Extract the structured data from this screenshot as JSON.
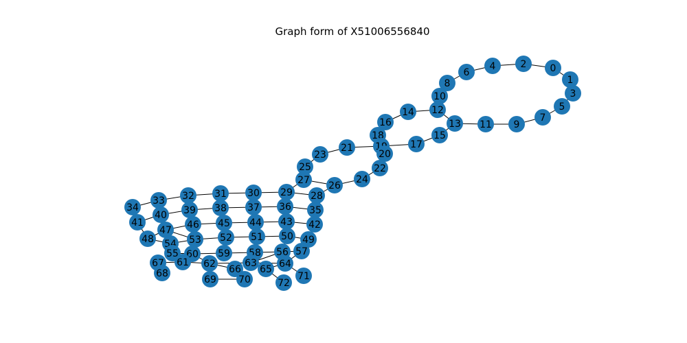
{
  "title": "Graph form of X51006556840",
  "colors": {
    "node": "#1f77b4",
    "edge": "#000000",
    "label": "#000000",
    "background": "#ffffff"
  },
  "nodes": [
    "0",
    "1",
    "2",
    "3",
    "4",
    "5",
    "6",
    "7",
    "8",
    "9",
    "10",
    "11",
    "12",
    "13",
    "14",
    "15",
    "16",
    "17",
    "18",
    "19",
    "20",
    "21",
    "22",
    "23",
    "24",
    "25",
    "26",
    "27",
    "28",
    "29",
    "30",
    "31",
    "32",
    "33",
    "34",
    "35",
    "36",
    "37",
    "38",
    "39",
    "40",
    "41",
    "42",
    "43",
    "44",
    "45",
    "46",
    "47",
    "48",
    "49",
    "50",
    "51",
    "52",
    "53",
    "54",
    "55",
    "56",
    "57",
    "58",
    "59",
    "60",
    "61",
    "62",
    "63",
    "64",
    "65",
    "66",
    "67",
    "68",
    "69",
    "70",
    "71",
    "72"
  ],
  "edges": [
    [
      "0",
      "1"
    ],
    [
      "1",
      "3"
    ],
    [
      "3",
      "5"
    ],
    [
      "5",
      "7"
    ],
    [
      "7",
      "9"
    ],
    [
      "9",
      "11"
    ],
    [
      "11",
      "13"
    ],
    [
      "13",
      "15"
    ],
    [
      "15",
      "17"
    ],
    [
      "17",
      "19"
    ],
    [
      "0",
      "2"
    ],
    [
      "2",
      "4"
    ],
    [
      "4",
      "6"
    ],
    [
      "6",
      "8"
    ],
    [
      "8",
      "10"
    ],
    [
      "10",
      "12"
    ],
    [
      "12",
      "14"
    ],
    [
      "14",
      "16"
    ],
    [
      "16",
      "18"
    ],
    [
      "18",
      "20"
    ],
    [
      "12",
      "13"
    ],
    [
      "19",
      "20"
    ],
    [
      "19",
      "21"
    ],
    [
      "21",
      "23"
    ],
    [
      "23",
      "25"
    ],
    [
      "25",
      "27"
    ],
    [
      "27",
      "29"
    ],
    [
      "20",
      "22"
    ],
    [
      "22",
      "24"
    ],
    [
      "24",
      "26"
    ],
    [
      "26",
      "27"
    ],
    [
      "26",
      "28"
    ],
    [
      "28",
      "29"
    ],
    [
      "28",
      "35"
    ],
    [
      "29",
      "30"
    ],
    [
      "30",
      "31"
    ],
    [
      "31",
      "32"
    ],
    [
      "32",
      "33"
    ],
    [
      "33",
      "34"
    ],
    [
      "34",
      "41"
    ],
    [
      "33",
      "40"
    ],
    [
      "35",
      "36"
    ],
    [
      "36",
      "37"
    ],
    [
      "37",
      "38"
    ],
    [
      "38",
      "39"
    ],
    [
      "39",
      "40"
    ],
    [
      "40",
      "41"
    ],
    [
      "35",
      "42"
    ],
    [
      "42",
      "43"
    ],
    [
      "43",
      "44"
    ],
    [
      "44",
      "45"
    ],
    [
      "45",
      "46"
    ],
    [
      "46",
      "47"
    ],
    [
      "47",
      "48"
    ],
    [
      "48",
      "54"
    ],
    [
      "41",
      "48"
    ],
    [
      "42",
      "49"
    ],
    [
      "49",
      "50"
    ],
    [
      "50",
      "51"
    ],
    [
      "51",
      "52"
    ],
    [
      "52",
      "53"
    ],
    [
      "53",
      "54"
    ],
    [
      "54",
      "55"
    ],
    [
      "55",
      "60"
    ],
    [
      "49",
      "57"
    ],
    [
      "50",
      "56"
    ],
    [
      "56",
      "58"
    ],
    [
      "58",
      "59"
    ],
    [
      "59",
      "60"
    ],
    [
      "60",
      "61"
    ],
    [
      "61",
      "67"
    ],
    [
      "67",
      "68"
    ],
    [
      "55",
      "61"
    ],
    [
      "57",
      "56"
    ],
    [
      "57",
      "64"
    ],
    [
      "56",
      "63"
    ],
    [
      "63",
      "62"
    ],
    [
      "62",
      "60"
    ],
    [
      "62",
      "66"
    ],
    [
      "64",
      "65"
    ],
    [
      "65",
      "72"
    ],
    [
      "64",
      "71"
    ],
    [
      "66",
      "70"
    ],
    [
      "69",
      "70"
    ],
    [
      "63",
      "64"
    ],
    [
      "53",
      "47"
    ],
    [
      "58",
      "63"
    ],
    [
      "61",
      "62"
    ]
  ]
}
